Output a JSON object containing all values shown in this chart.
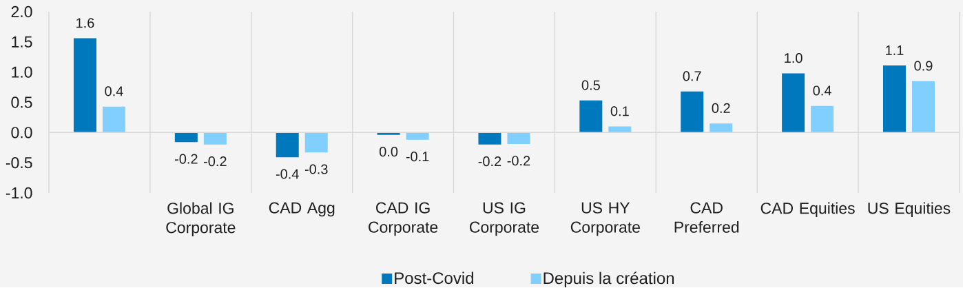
{
  "chart_data": {
    "type": "bar",
    "categories": [
      null,
      "Global IG Corporate",
      "CAD Agg",
      "CAD IG Corporate",
      "US IG Corporate",
      "US HY Corporate",
      "CAD Preferred",
      "CAD Equities",
      "US Equities"
    ],
    "series": [
      {
        "name": "Post-Covid",
        "color": "#0078be",
        "values": [
          1.56,
          -0.16,
          -0.41,
          -0.04,
          -0.2,
          0.53,
          0.68,
          0.98,
          1.11
        ],
        "value_labels": [
          "1.6",
          "-0.2",
          "-0.4",
          "0.0",
          "-0.2",
          "0.5",
          "0.7",
          "1.0",
          "1.1"
        ]
      },
      {
        "name": "Depuis la création",
        "color": "#80cfff",
        "values": [
          0.43,
          -0.2,
          -0.33,
          -0.12,
          -0.19,
          0.1,
          0.15,
          0.44,
          0.85
        ],
        "value_labels": [
          "0.4",
          "-0.2",
          "-0.3",
          "-0.1",
          "-0.2",
          "0.1",
          "0.2",
          "0.4",
          "0.9"
        ]
      }
    ],
    "ylim": [
      -1,
      2
    ],
    "yticks": [
      {
        "value": -1,
        "label": "-1.0"
      },
      {
        "value": -0.5,
        "label": "-0.5"
      },
      {
        "value": 0,
        "label": "0.0"
      },
      {
        "value": 0.5,
        "label": "0.5"
      },
      {
        "value": 1,
        "label": "1.0"
      },
      {
        "value": 1.5,
        "label": "1.5"
      },
      {
        "value": 2,
        "label": "2.0"
      }
    ],
    "ref_lines": [
      {
        "axis": "y",
        "value": 0,
        "color": "#d9d9d9"
      }
    ],
    "grid": "x",
    "legend": "bottom"
  }
}
